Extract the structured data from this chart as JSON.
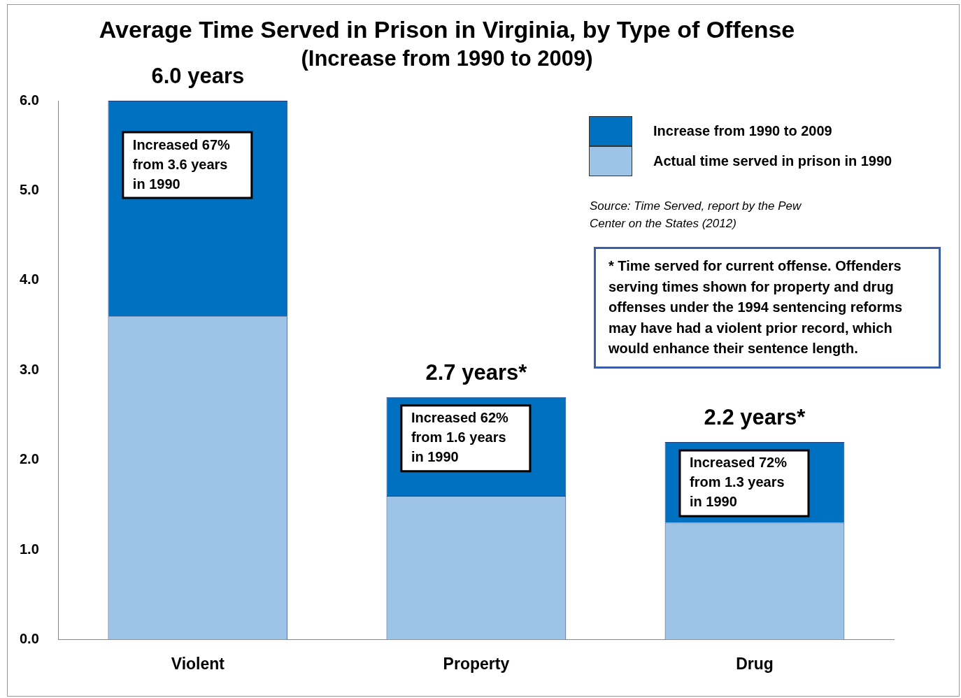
{
  "chart_data": {
    "type": "bar",
    "title": "Average Time Served in Prison in Virginia, by Type of Offense",
    "subtitle": "(Increase from 1990 to 2009)",
    "categories": [
      "Violent",
      "Property",
      "Drug"
    ],
    "stacked": true,
    "series": [
      {
        "name": "Actual time served in prison in 1990",
        "color": "#9dc3e6",
        "values": [
          3.6,
          1.6,
          1.3
        ]
      },
      {
        "name": "Increase from 1990 to 2009",
        "color": "#0070c0",
        "values": [
          2.4,
          1.1,
          0.9
        ]
      }
    ],
    "totals": [
      "6.0 years",
      "2.7 years*",
      "2.2 years*"
    ],
    "ylim": [
      0,
      6
    ],
    "yticks": [
      {
        "value": 0,
        "label": "0.0"
      },
      {
        "value": 1,
        "label": "1.0"
      },
      {
        "value": 2,
        "label": "2.0"
      },
      {
        "value": 3,
        "label": "3.0"
      },
      {
        "value": 4,
        "label": "4.0"
      },
      {
        "value": 5,
        "label": "5.0"
      },
      {
        "value": 6,
        "label": "6.0"
      }
    ],
    "grid": false,
    "legend": "top right",
    "annotations": [
      "Increased 67% from 3.6 years in 1990",
      "Increased 62% from 1.6 years in 1990",
      "Increased 72% from 1.3 years in 1990",
      "Source: Time Served, report by the Pew Center on the States (2012)",
      "* Time served for current offense.  Offenders serving times shown for property and drug offenses under the 1994 sentencing reforms may have had a violent prior record, which would enhance their sentence length."
    ]
  }
}
